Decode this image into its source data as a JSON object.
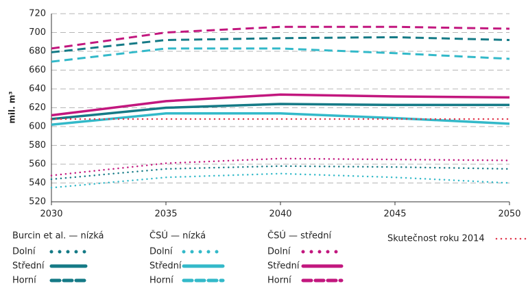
{
  "chart_data": {
    "type": "line",
    "y_label": "mil. m³",
    "x": [
      2030,
      2035,
      2040,
      2045,
      2050
    ],
    "xlim": [
      2030,
      2050
    ],
    "xticks": [
      2030,
      2035,
      2040,
      2045,
      2050
    ],
    "ylim": [
      520,
      720
    ],
    "yticks": [
      520,
      540,
      560,
      580,
      600,
      620,
      640,
      660,
      680,
      700,
      720
    ],
    "grid": true,
    "groups": [
      {
        "name": "Burcin et al. — nízká",
        "color": "#157a86",
        "series": [
          {
            "name": "Dolní",
            "style": "dotted",
            "values": [
              544,
              555,
              558,
              557,
              555
            ]
          },
          {
            "name": "Střední",
            "style": "solid",
            "values": [
              608,
              620,
              624,
              623,
              623
            ]
          },
          {
            "name": "Horní",
            "style": "dashed",
            "values": [
              679,
              692,
              694,
              695,
              692
            ]
          }
        ]
      },
      {
        "name": "ČSÚ — nízká",
        "color": "#33b9c9",
        "series": [
          {
            "name": "Dolní",
            "style": "dotted",
            "values": [
              535,
              546,
              550,
              546,
              540
            ]
          },
          {
            "name": "Střední",
            "style": "solid",
            "values": [
              602,
              614,
              614,
              609,
              603
            ]
          },
          {
            "name": "Horní",
            "style": "dashed",
            "values": [
              669,
              683,
              683,
              678,
              672
            ]
          }
        ]
      },
      {
        "name": "ČSÚ — střední",
        "color": "#c2177e",
        "series": [
          {
            "name": "Dolní",
            "style": "dotted",
            "values": [
              548,
              561,
              566,
              565,
              564
            ]
          },
          {
            "name": "Střední",
            "style": "solid",
            "values": [
              612,
              627,
              634,
              632,
              631
            ]
          },
          {
            "name": "Horní",
            "style": "dashed",
            "values": [
              683,
              700,
              706,
              706,
              704
            ]
          }
        ]
      }
    ],
    "reference": {
      "name": "Skutečnost roku 2014",
      "color": "#e0334a",
      "style": "dotted",
      "values": [
        608,
        608,
        608,
        608,
        608
      ]
    }
  }
}
